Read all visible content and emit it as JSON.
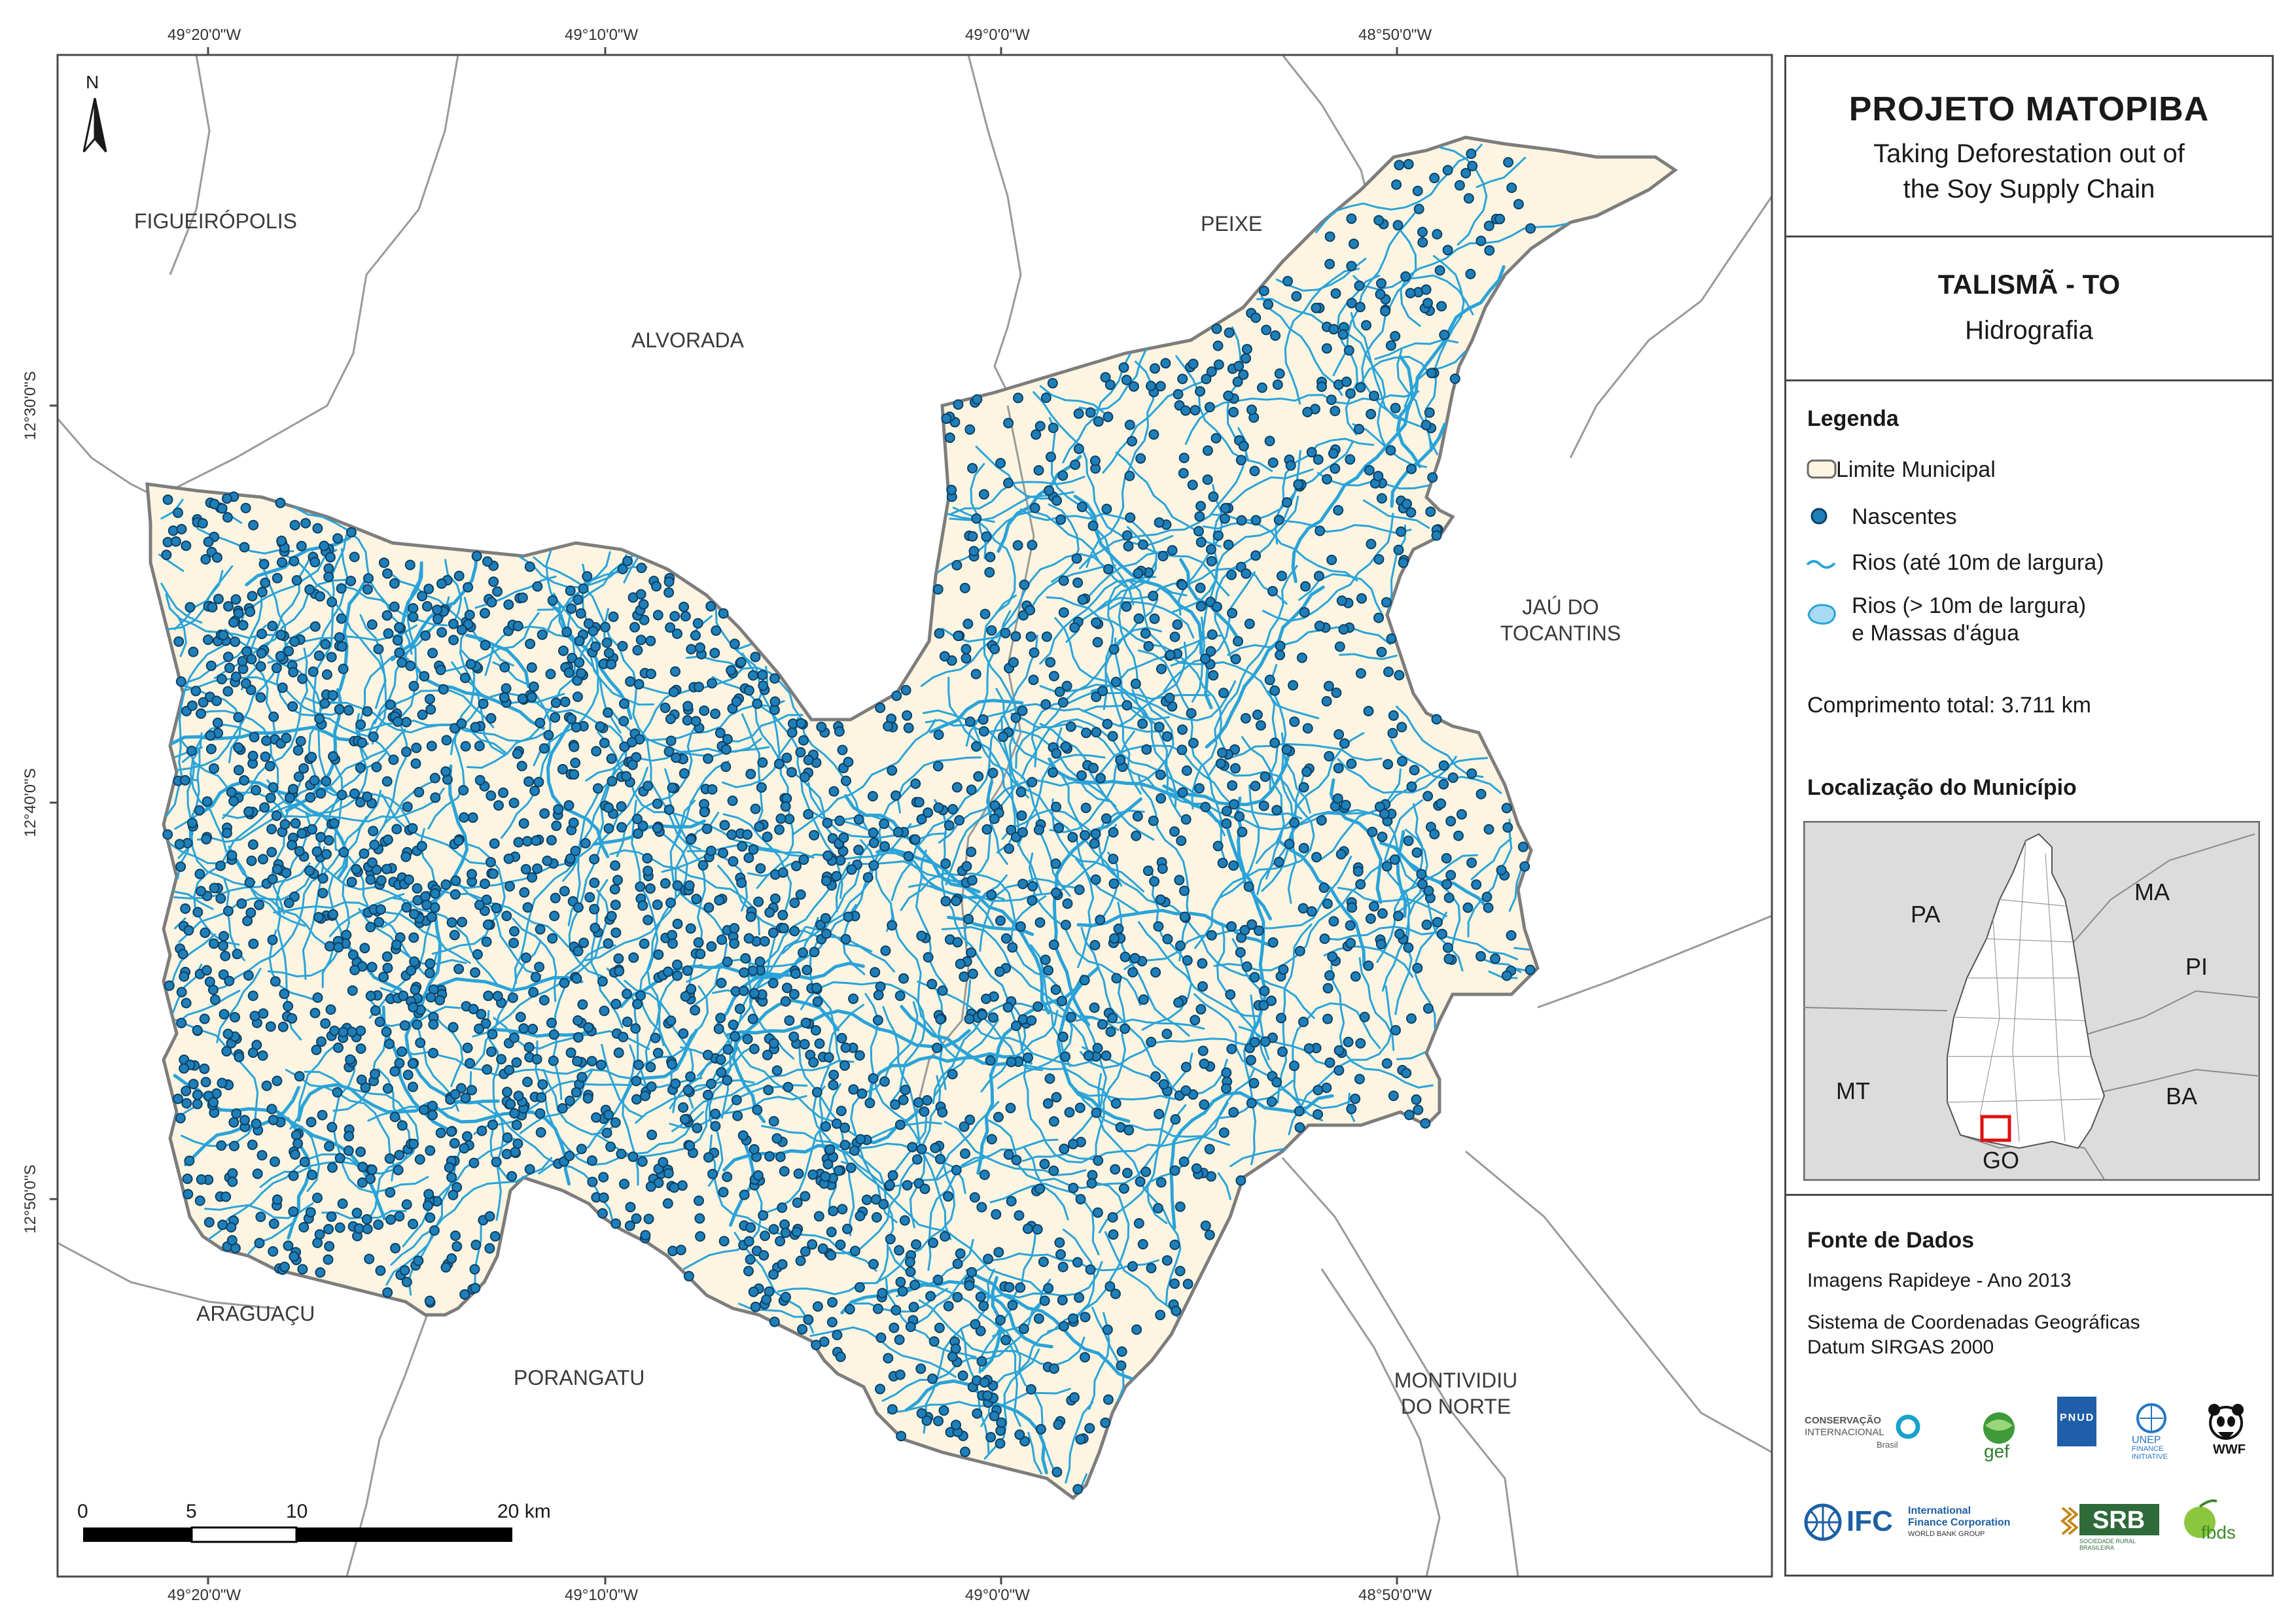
{
  "coords": {
    "top": [
      "49°20'0\"W",
      "49°10'0\"W",
      "49°0'0\"W",
      "48°50'0\"W"
    ],
    "bottom": [
      "49°20'0\"W",
      "49°10'0\"W",
      "49°0'0\"W",
      "48°50'0\"W"
    ],
    "left": [
      "12°30'0\"S",
      "12°40'0\"S",
      "12°50'0\"S"
    ]
  },
  "north_label": "N",
  "municipalities": {
    "figueiropolis": "FIGUEIRÓPOLIS",
    "alvorada": "ALVORADA",
    "peixe": "PEIXE",
    "jau_line1": "JAÚ DO",
    "jau_line2": "TOCANTINS",
    "araguacu": "ARAGUAÇU",
    "porangatu": "PORANGATU",
    "montividiu_line1": "MONTIVIDIU",
    "montividiu_line2": "DO NORTE"
  },
  "scale_bar": {
    "ticks": [
      "0",
      "5",
      "10",
      "20 km"
    ]
  },
  "panel": {
    "project_title": "PROJETO MATOPIBA",
    "subtitle_line1": "Taking Deforestation out of",
    "subtitle_line2": "the Soy Supply Chain",
    "municipality": "TALISMÃ - TO",
    "theme": "Hidrografia",
    "legend_title": "Legenda",
    "legend_items": {
      "limite": "Limite Municipal",
      "nascentes": "Nascentes",
      "rios_small": "Rios (até 10m de largura)",
      "rios_large_line1": "Rios (> 10m de largura)",
      "rios_large_line2": "e Massas d'água"
    },
    "total_length": "Comprimento total: 3.711 km",
    "location_title": "Localização do Município",
    "inset_states": {
      "pa": "PA",
      "ma": "MA",
      "pi": "PI",
      "mt": "MT",
      "ba": "BA",
      "go": "GO"
    },
    "sources_title": "Fonte de Dados",
    "sources_line1": "Imagens Rapideye - Ano 2013",
    "sources_line2": "Sistema de Coordenadas Geográficas",
    "sources_line3": "Datum SIRGAS 2000"
  },
  "logos": {
    "ci_line1": "CONSERVAÇÃO",
    "ci_line2": "INTERNACIONAL",
    "ci_line3": "Brasil",
    "gef": "gef",
    "pnud": "PNUD",
    "unep_line1": "UNEP",
    "unep_line2": "FINANCE",
    "unep_line3": "INITIATIVE",
    "wwf": "WWF",
    "ifc": "IFC",
    "ifc_line1": "International",
    "ifc_line2": "Finance Corporation",
    "ifc_line3": "WORLD BANK GROUP",
    "srb": "SRB",
    "srb_sub": "SOCIEDADE RURAL BRASILEIRA",
    "fbds": "fbds"
  },
  "colors": {
    "municipio_fill": "#fdf5e1",
    "neighbor_fill": "#ffffff",
    "border": "#8a8a8a",
    "river": "#2aa3d8",
    "spring_fill": "#1f7fb8",
    "spring_stroke": "#0d3f63",
    "inset_bg": "#dcdcdc",
    "highlight": "#e01010"
  }
}
